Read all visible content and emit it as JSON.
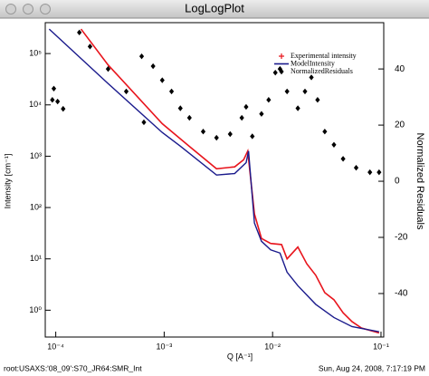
{
  "chart_data": {
    "type": "line",
    "title": "LogLogPlot",
    "x_label": "Q [A⁻¹]",
    "y_label": "Intensity [cm⁻¹]",
    "y2_label": "Normalized Residuals",
    "xscale": "log",
    "yscale": "log",
    "xlim": [
      8e-05,
      0.106
    ],
    "ylim": [
      0.3,
      400000
    ],
    "y2lim": [
      -55.5,
      56.5
    ],
    "xticks": [
      {
        "value": 0.0001,
        "label": "10⁻⁴"
      },
      {
        "value": 0.001,
        "label": "10⁻³"
      },
      {
        "value": 0.01,
        "label": "10⁻²"
      },
      {
        "value": 0.1,
        "label": "10⁻¹"
      }
    ],
    "yticks": [
      {
        "value": 1,
        "label": "10⁰"
      },
      {
        "value": 10,
        "label": "10¹"
      },
      {
        "value": 100,
        "label": "10²"
      },
      {
        "value": 1000,
        "label": "10³"
      },
      {
        "value": 10000,
        "label": "10⁴"
      },
      {
        "value": 100000,
        "label": "10⁵"
      }
    ],
    "y2ticks": [
      -40,
      -20,
      0,
      20,
      40
    ],
    "legend": "top-right",
    "series": [
      {
        "name": "Experimental intensity",
        "color": "#e8141c",
        "marker": "plus",
        "x": [
          0.000171,
          0.000304,
          0.00096,
          0.00171,
          0.00304,
          0.00447,
          0.0054,
          0.0059,
          0.0068,
          0.0079,
          0.0096,
          0.0121,
          0.0136,
          0.0171,
          0.0207,
          0.025,
          0.0303,
          0.0368,
          0.0447,
          0.054,
          0.066,
          0.096
        ],
        "values": [
          300000,
          60000,
          4300,
          1550,
          570,
          620,
          850,
          1260,
          75,
          25,
          20,
          19,
          10,
          17,
          8,
          4.8,
          2.2,
          1.6,
          0.89,
          0.6,
          0.45,
          0.36
        ]
      },
      {
        "name": "ModelIntensity",
        "color": "#1a1a8c",
        "marker": "line",
        "x": [
          8.7e-05,
          0.000304,
          0.00096,
          0.00141,
          0.00304,
          0.00447,
          0.0057,
          0.006,
          0.0068,
          0.0079,
          0.0096,
          0.0117,
          0.0136,
          0.0171,
          0.025,
          0.0368,
          0.054,
          0.096
        ],
        "values": [
          300000,
          26000,
          2900,
          1570,
          430,
          460,
          750,
          1260,
          50,
          22,
          15,
          13,
          5.5,
          3,
          1.3,
          0.72,
          0.48,
          0.38
        ]
      },
      {
        "name": "NormalizedResiduals",
        "color": "#000000",
        "marker": "diamond",
        "axis": "y2",
        "x": [
          9.3e-05,
          9.6e-05,
          0.000104,
          0.000117,
          0.000165,
          0.000207,
          0.000304,
          0.000447,
          0.00065,
          0.00062,
          0.00079,
          0.00096,
          0.00117,
          0.00141,
          0.00171,
          0.00229,
          0.00304,
          0.00406,
          0.0052,
          0.0057,
          0.0065,
          0.0079,
          0.0092,
          0.0106,
          0.0117,
          0.0136,
          0.0171,
          0.0199,
          0.0228,
          0.026,
          0.0303,
          0.0368,
          0.0447,
          0.059,
          0.079,
          0.096
        ],
        "values": [
          29,
          33,
          28.4,
          25.8,
          53,
          48,
          40,
          32,
          21,
          44.5,
          41,
          36,
          32,
          26,
          22.6,
          17.7,
          15.5,
          16.8,
          22.6,
          26.5,
          16,
          24,
          29,
          38.7,
          40,
          32,
          26,
          32,
          37,
          29,
          17.7,
          13,
          8,
          4.8,
          3.2,
          3.2
        ]
      }
    ],
    "footer_left": "root:USAXS:'08_09':S70_JR64:SMR_Int",
    "footer_right": "Sun, Aug 24, 2008, 7:17:19 PM"
  }
}
